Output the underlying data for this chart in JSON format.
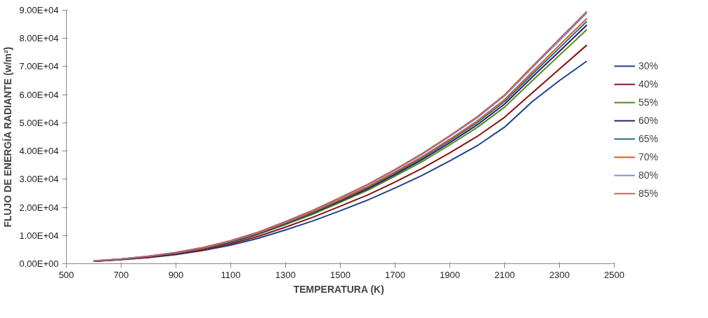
{
  "chart_data": {
    "type": "line",
    "xlabel": "TEMPERATURA  (K)",
    "ylabel": "FLUJO DE ENERGÍA RADIANTE (w/m²)",
    "x": [
      600,
      700,
      800,
      900,
      1000,
      1100,
      1200,
      1300,
      1400,
      1500,
      1600,
      1700,
      1800,
      1900,
      2000,
      2100,
      2200,
      2300,
      2400
    ],
    "series": [
      {
        "name": "30%",
        "color": "#1f3f8f",
        "values": [
          800,
          1400,
          2200,
          3200,
          4700,
          6600,
          9000,
          12000,
          15200,
          18800,
          22600,
          26900,
          31400,
          36500,
          41900,
          48500,
          57500,
          65000,
          71900
        ]
      },
      {
        "name": "40%",
        "color": "#8b1010",
        "values": [
          900,
          1500,
          2300,
          3500,
          5000,
          7100,
          9700,
          13000,
          16500,
          20400,
          24400,
          29000,
          33900,
          39400,
          45200,
          52000,
          60600,
          69100,
          77600
        ]
      },
      {
        "name": "55%",
        "color": "#4e8a1a",
        "values": [
          null,
          null,
          null,
          3700,
          5400,
          7600,
          10400,
          13900,
          17600,
          21800,
          26100,
          31100,
          36300,
          42200,
          48400,
          55600,
          64900,
          74000,
          83100
        ]
      },
      {
        "name": "60%",
        "color": "#2e1a5e",
        "values": [
          900,
          1600,
          2600,
          3800,
          5500,
          7700,
          10600,
          14200,
          18000,
          22200,
          26600,
          31700,
          37000,
          43000,
          49300,
          56700,
          66200,
          75400,
          84700
        ]
      },
      {
        "name": "65%",
        "color": "#1a6e8a",
        "values": [
          1000,
          1600,
          2600,
          3800,
          5600,
          7900,
          10800,
          14400,
          18200,
          22600,
          27100,
          32200,
          37600,
          43700,
          50100,
          57600,
          67200,
          76600,
          86000
        ]
      },
      {
        "name": "70%",
        "color": "#e0561a",
        "values": [
          null,
          null,
          null,
          3900,
          5600,
          8000,
          10900,
          14600,
          18500,
          22800,
          27400,
          32600,
          38100,
          44200,
          50700,
          58300,
          68000,
          77600,
          87100
        ]
      },
      {
        "name": "80%",
        "color": "#6e95d8",
        "values": [
          1000,
          1700,
          2700,
          4000,
          5800,
          8100,
          11100,
          14900,
          18900,
          23300,
          28000,
          33300,
          38900,
          45200,
          51800,
          59600,
          69500,
          79200,
          89000
        ]
      },
      {
        "name": "85%",
        "color": "#c06060",
        "values": [
          1000,
          1700,
          2700,
          4000,
          5800,
          8200,
          11200,
          15000,
          19000,
          23500,
          28200,
          33500,
          39200,
          45500,
          52200,
          60000,
          70000,
          79800,
          89600
        ]
      }
    ],
    "xlim": [
      500,
      2500
    ],
    "xticks": [
      500,
      700,
      900,
      1100,
      1300,
      1500,
      1700,
      1900,
      2100,
      2300,
      2500
    ],
    "ylim": [
      0,
      90000
    ],
    "yticks": [
      {
        "value": 0,
        "label": "0.00E+00"
      },
      {
        "value": 10000,
        "label": "1.00E+04"
      },
      {
        "value": 20000,
        "label": "2.00E+04"
      },
      {
        "value": 30000,
        "label": "3.00E+04"
      },
      {
        "value": 40000,
        "label": "4.00E+04"
      },
      {
        "value": 50000,
        "label": "5.00E+04"
      },
      {
        "value": 60000,
        "label": "6.00E+04"
      },
      {
        "value": 70000,
        "label": "7.00E+04"
      },
      {
        "value": 80000,
        "label": "8.00E+04"
      },
      {
        "value": 90000,
        "label": "9.00E+04"
      }
    ],
    "grid": false,
    "legend": "right",
    "line_style": "solid",
    "marker": "none"
  }
}
